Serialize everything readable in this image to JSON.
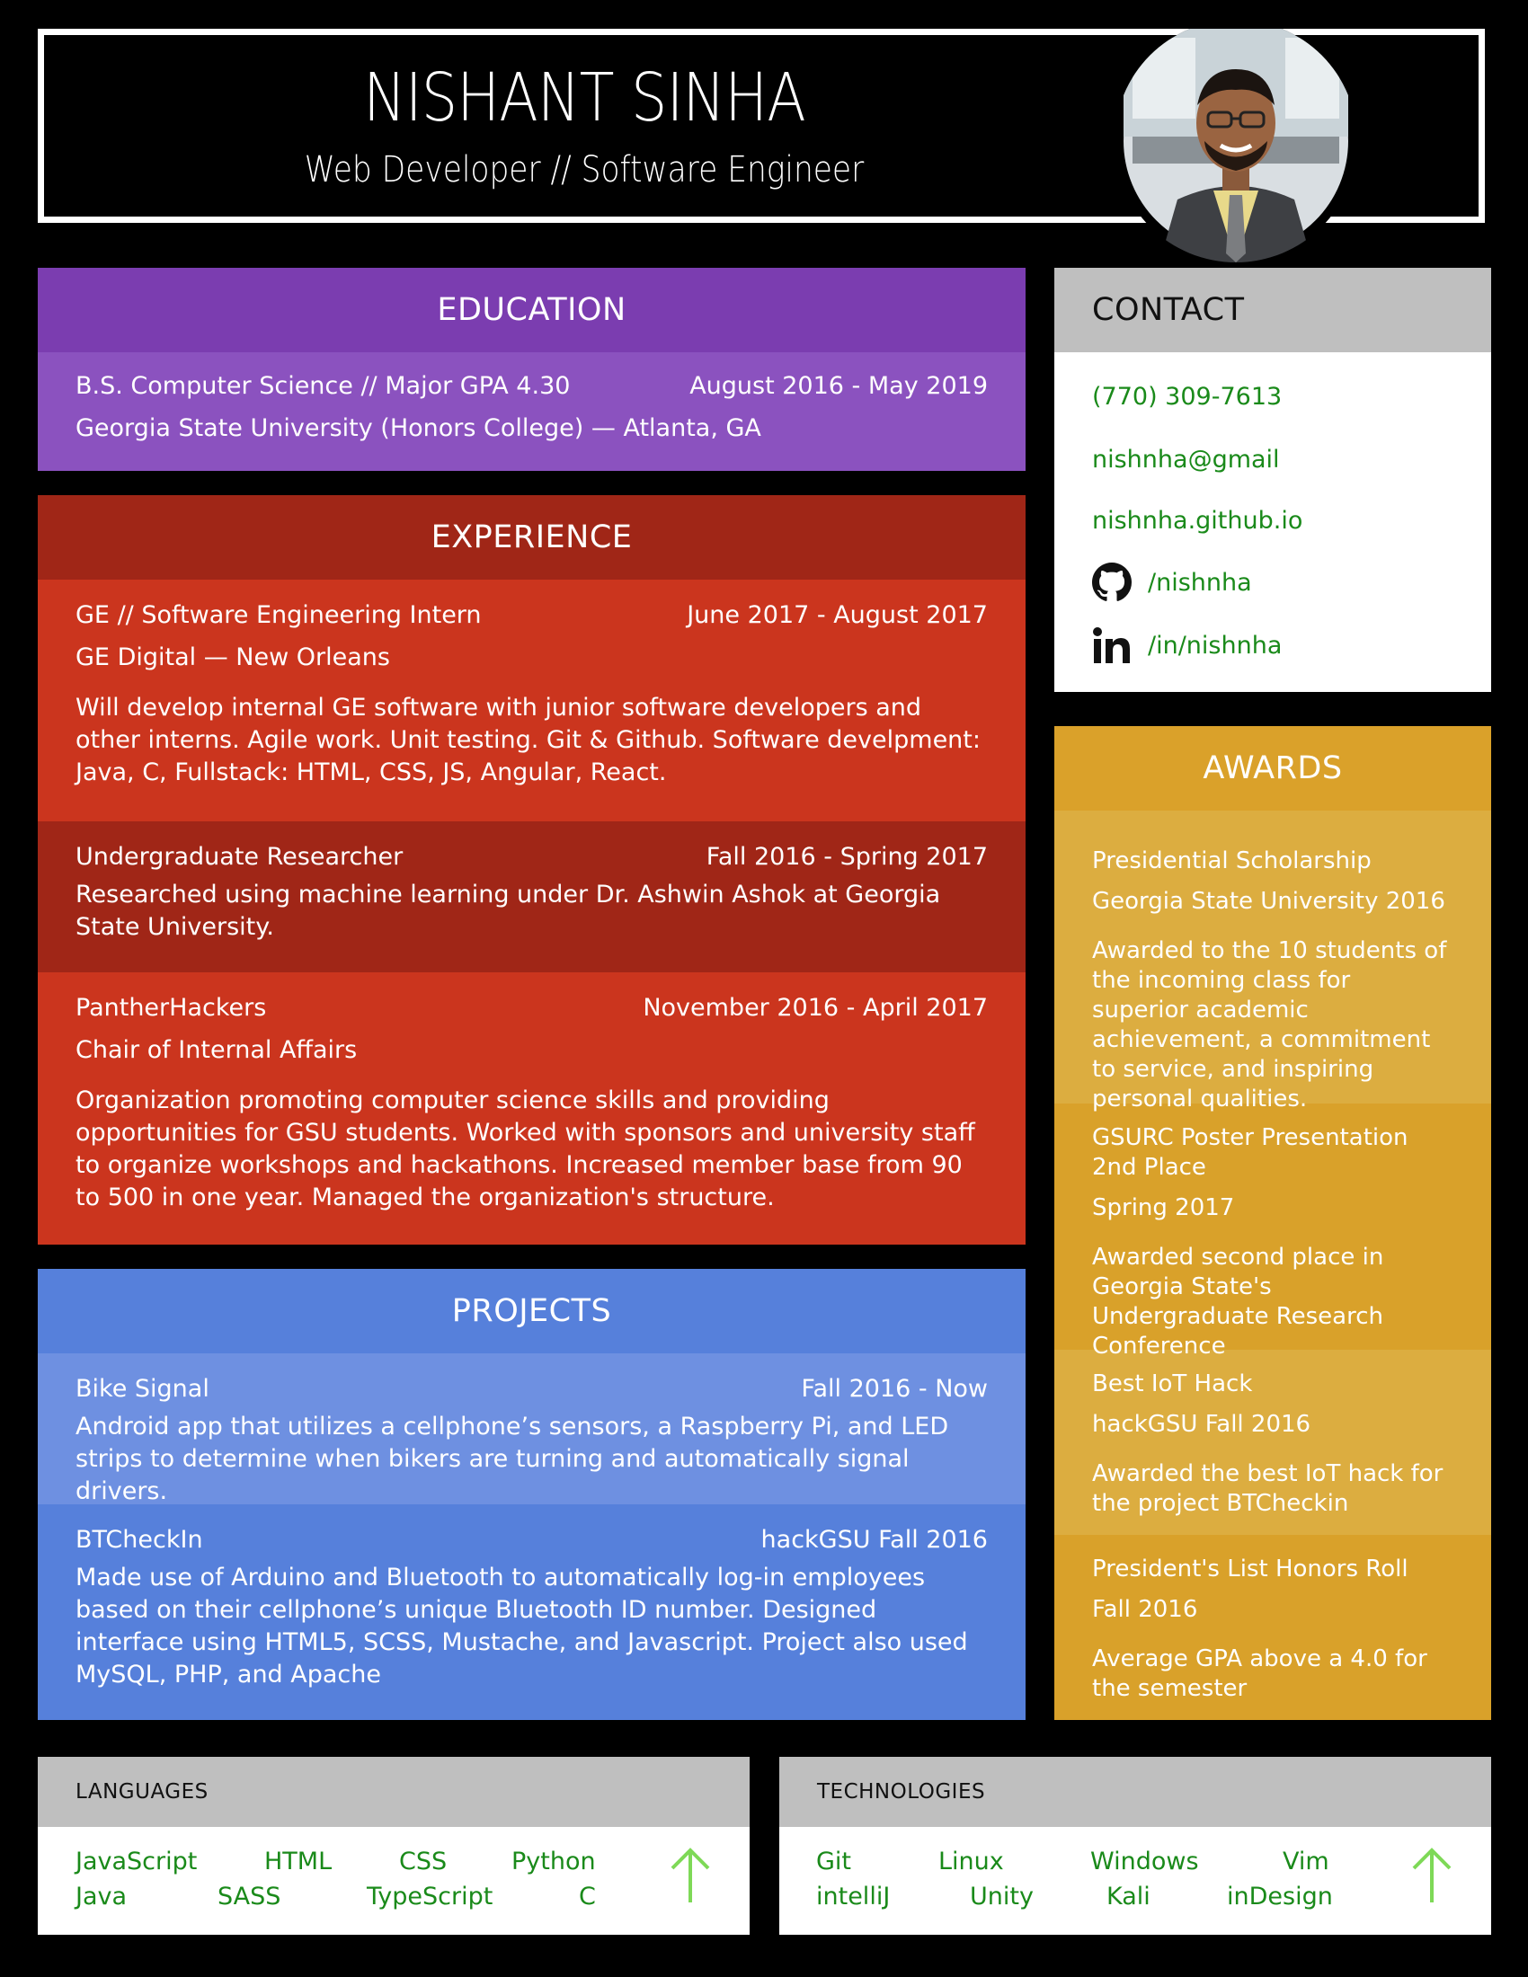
{
  "header": {
    "name": "NISHANT SINHA",
    "subtitle": "Web Developer // Software Engineer"
  },
  "education": {
    "title": "EDUCATION",
    "degree": "B.S. Computer Science // Major GPA 4.30",
    "dates": "August 2016 - May 2019",
    "school": "Georgia State University (Honors College) — Atlanta, GA"
  },
  "experience": {
    "title": "EXPERIENCE",
    "items": [
      {
        "role": "GE // Software Engineering Intern",
        "dates": "June 2017 - August 2017",
        "org": "GE Digital — New Orleans",
        "desc": "Will develop internal GE software with junior software developers and other interns. Agile work. Unit testing. Git & Github. Software develpment: Java, C, Fullstack: HTML, CSS, JS, Angular, React."
      },
      {
        "role": "Undergraduate Researcher",
        "dates": "Fall 2016 - Spring 2017",
        "desc": "Researched using machine learning under Dr. Ashwin Ashok at Georgia State University."
      },
      {
        "role": "PantherHackers",
        "dates": "November 2016 - April 2017",
        "org": "Chair of Internal Affairs",
        "desc": "Organization promoting computer science skills and providing opportunities for GSU students. Worked with sponsors and university staff to organize workshops and hackathons. Increased member base from 90 to 500 in one year. Managed the organization's structure."
      }
    ]
  },
  "projects": {
    "title": "PROJECTS",
    "items": [
      {
        "name": "Bike Signal",
        "dates": "Fall 2016 - Now",
        "desc": "Android app that utilizes a cellphone’s sensors, a Raspberry Pi, and LED strips to determine when bikers are turning and automatically signal drivers."
      },
      {
        "name": "BTCheckIn",
        "dates": "hackGSU Fall 2016",
        "desc": "Made use of Arduino and Bluetooth to automatically log-in employees based on their cellphone’s unique Bluetooth ID number. Designed interface using HTML5, SCSS, Mustache, and Javascript. Project also used MySQL, PHP, and Apache"
      }
    ]
  },
  "contact": {
    "title": "CONTACT",
    "phone": "(770) 309-7613",
    "email": "nishnha@gmail",
    "website": "nishnha.github.io",
    "github": "/nishnha",
    "linkedin": "/in/nishnha"
  },
  "awards": {
    "title": "AWARDS",
    "items": [
      {
        "name": "Presidential Scholarship",
        "when": "Georgia State University 2016",
        "desc": "Awarded to the 10 students of the incoming class for superior academic achievement, a commitment to service, and inspiring personal qualities."
      },
      {
        "name": "GSURC Poster Presentation 2nd Place",
        "when": "Spring 2017",
        "desc": "Awarded second place in Georgia State's Undergraduate Research Conference"
      },
      {
        "name": "Best IoT Hack",
        "when": "hackGSU Fall 2016",
        "desc": "Awarded the best IoT hack for the project BTCheckin"
      },
      {
        "name": "President's List Honors Roll",
        "when": "Fall 2016",
        "desc": "Average GPA above a 4.0 for the semester"
      }
    ]
  },
  "languages": {
    "title": "LANGUAGES",
    "items": [
      "JavaScript",
      "HTML",
      "CSS",
      "Python",
      "Java",
      "SASS",
      "TypeScript",
      "C"
    ]
  },
  "technologies": {
    "title": "TECHNOLOGIES",
    "items": [
      "Git",
      "Linux",
      "Windows",
      "Vim",
      "intelliJ",
      "Unity",
      "Kali",
      "inDesign"
    ]
  },
  "icons": {
    "github": "github-icon",
    "linkedin": "linkedin-icon",
    "arrow": "arrow-up-icon"
  },
  "colors": {
    "education": "#7b3db0",
    "experience": "#cb351e",
    "projects": "#5680db",
    "awards": "#daa12a",
    "link_green": "#1a8a1a",
    "arrow_green": "#7ed957"
  }
}
